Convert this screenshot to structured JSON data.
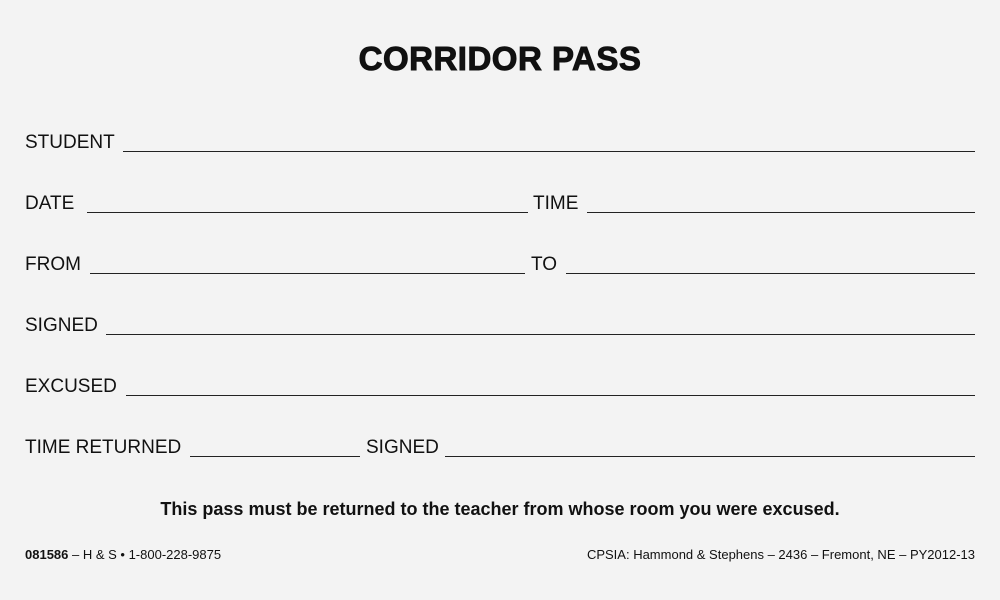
{
  "title": "CORRIDOR PASS",
  "fields": {
    "student": "STUDENT",
    "date": "DATE",
    "time": "TIME",
    "from": "FROM",
    "to": "TO",
    "signed": "SIGNED",
    "excused": "EXCUSED",
    "time_returned": "TIME RETURNED",
    "signed_return": "SIGNED"
  },
  "notice": "This pass must be returned to the teacher from whose room you were excused.",
  "footer": {
    "form_number": "081586",
    "left_rest": " – H & S • 1-800-228-9875",
    "right": "CPSIA: Hammond & Stephens – 2436 – Fremont, NE – PY2012-13"
  }
}
